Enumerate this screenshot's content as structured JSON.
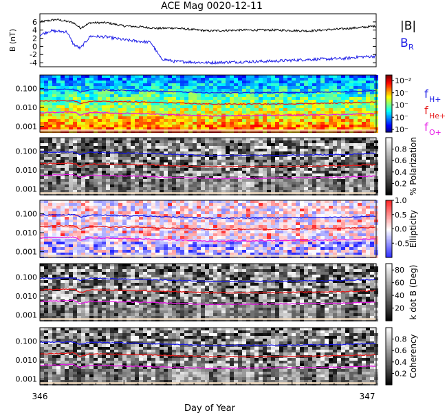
{
  "figure": {
    "title": "ACE Mag 0020-12-11",
    "xlabel": "Day of Year",
    "x_ticks": [
      "346",
      "347"
    ],
    "xlim": [
      346,
      347
    ]
  },
  "colors": {
    "btotal": "#000000",
    "br": "#1a1ae6",
    "h_line": "#1a1ae6",
    "he_line": "#e61a1a",
    "o_line": "#e61ae6"
  },
  "chart_data": [
    {
      "type": "line",
      "panel": "mag",
      "ylabel": "B (nT)",
      "ylim": [
        -5,
        8
      ],
      "y_ticks": [
        "6",
        "4",
        "2",
        "0",
        "-2",
        "-4"
      ],
      "legend": [
        "|B|",
        "B_R"
      ],
      "series": [
        {
          "name": "|B|",
          "x": [
            346.0,
            346.05,
            346.1,
            346.12,
            346.15,
            346.2,
            346.25,
            346.3,
            346.35,
            346.4,
            346.5,
            346.6,
            346.7,
            346.8,
            346.9,
            346.95,
            347.0
          ],
          "values": [
            6.0,
            6.6,
            5.8,
            4.5,
            5.8,
            5.8,
            5.0,
            4.8,
            4.4,
            4.5,
            3.8,
            4.0,
            4.0,
            3.8,
            4.3,
            4.6,
            5.0
          ]
        },
        {
          "name": "B_R",
          "x": [
            346.0,
            346.03,
            346.08,
            346.1,
            346.12,
            346.15,
            346.2,
            346.25,
            346.3,
            346.33,
            346.36,
            346.4,
            346.5,
            346.6,
            346.7,
            346.8,
            346.9,
            346.95,
            347.0
          ],
          "values": [
            2.8,
            3.8,
            3.6,
            0.5,
            -0.5,
            2.5,
            2.3,
            1.6,
            1.2,
            1.0,
            -3.0,
            -3.7,
            -4.0,
            -3.8,
            -3.6,
            -3.2,
            -3.0,
            -2.6,
            -2.4
          ]
        }
      ]
    },
    {
      "type": "heatmap",
      "panel": "power",
      "ylim": [
        0.0005,
        0.5
      ],
      "yscale": "log",
      "y_ticks": [
        "0.100",
        "0.010",
        "0.001"
      ],
      "colorbar_ticks": [
        "10⁻²",
        "10⁻",
        "10⁻",
        "10⁻",
        "10⁻"
      ],
      "legend": [
        "f_H+",
        "f_He+",
        "f_O+"
      ]
    },
    {
      "type": "heatmap",
      "panel": "polarization",
      "ylim": [
        0.0005,
        0.5
      ],
      "yscale": "log",
      "y_ticks": [
        "0.100",
        "0.010",
        "0.001"
      ],
      "colorbar_label": "% Polarization",
      "colorbar_ticks": [
        "0.8",
        "0.6",
        "0.4",
        "0.2"
      ],
      "colorbar_range": [
        0,
        1
      ]
    },
    {
      "type": "heatmap",
      "panel": "ellipticity",
      "ylim": [
        0.0005,
        0.5
      ],
      "yscale": "log",
      "y_ticks": [
        "0.100",
        "0.010",
        "0.001"
      ],
      "colorbar_label": "Ellipticity",
      "colorbar_ticks": [
        "1.0",
        "0.5",
        "0.0",
        "-0.5"
      ],
      "colorbar_range": [
        -1,
        1
      ]
    },
    {
      "type": "heatmap",
      "panel": "kdotb",
      "ylim": [
        0.0005,
        0.5
      ],
      "yscale": "log",
      "y_ticks": [
        "0.100",
        "0.010",
        "0.001"
      ],
      "colorbar_label": "k dot B (Deg)",
      "colorbar_ticks": [
        "80",
        "60",
        "40",
        "20"
      ],
      "colorbar_range": [
        0,
        90
      ]
    },
    {
      "type": "heatmap",
      "panel": "coherency",
      "ylim": [
        0.0005,
        0.5
      ],
      "yscale": "log",
      "y_ticks": [
        "0.100",
        "0.010",
        "0.001"
      ],
      "colorbar_label": "Coherency",
      "colorbar_ticks": [
        "0.8",
        "0.6",
        "0.4",
        "0.2"
      ],
      "colorbar_range": [
        0,
        1
      ]
    },
    {
      "type": "line",
      "panel": "gyrofrequencies",
      "series": [
        {
          "name": "f_H+",
          "x": [
            346.0,
            346.1,
            346.12,
            346.15,
            346.3,
            346.5,
            346.7,
            346.9,
            347.0
          ],
          "values": [
            0.085,
            0.09,
            0.065,
            0.085,
            0.075,
            0.058,
            0.06,
            0.065,
            0.075
          ]
        },
        {
          "name": "f_He+",
          "x": [
            346.0,
            346.1,
            346.12,
            346.15,
            346.3,
            346.5,
            346.7,
            346.9,
            347.0
          ],
          "values": [
            0.021,
            0.023,
            0.015,
            0.021,
            0.019,
            0.015,
            0.015,
            0.017,
            0.019
          ]
        },
        {
          "name": "f_O+",
          "x": [
            346.0,
            346.1,
            346.12,
            346.15,
            346.3,
            346.5,
            346.7,
            346.9,
            347.0
          ],
          "values": [
            0.0053,
            0.0058,
            0.004,
            0.0053,
            0.0047,
            0.0036,
            0.0038,
            0.0042,
            0.0048
          ]
        }
      ]
    }
  ]
}
